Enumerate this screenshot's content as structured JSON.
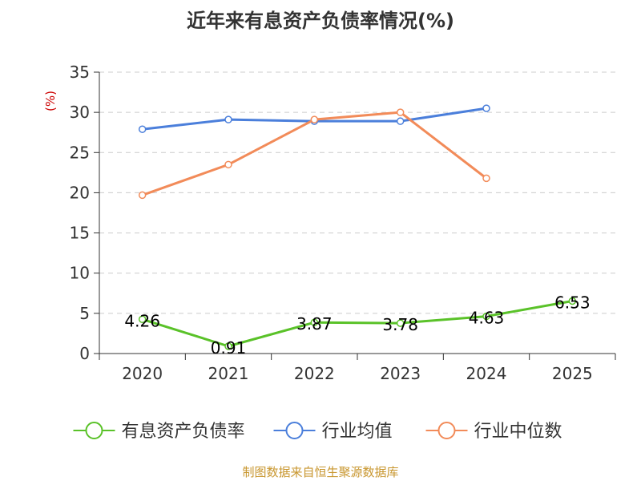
{
  "chart_data": {
    "type": "line",
    "title": "近年来有息资产负债率情况(%)",
    "ylabel": "(%)",
    "categories": [
      "2020",
      "2021",
      "2022",
      "2023",
      "2024",
      "2025"
    ],
    "ylim": [
      0,
      35
    ],
    "yticks": [
      0,
      5,
      10,
      15,
      20,
      25,
      30,
      35
    ],
    "grid": true,
    "legend_position": "bottom",
    "series": [
      {
        "name": "有息资产负债率",
        "color": "#5ac229",
        "values": [
          4.26,
          0.91,
          3.87,
          3.78,
          4.63,
          6.53
        ],
        "labels": [
          "4.26",
          "0.91",
          "3.87",
          "3.78",
          "4.63",
          "6.53"
        ]
      },
      {
        "name": "行业均值",
        "color": "#4b7fdb",
        "values": [
          27.9,
          29.1,
          28.9,
          28.9,
          30.5,
          null
        ]
      },
      {
        "name": "行业中位数",
        "color": "#f28b59",
        "values": [
          19.7,
          23.5,
          29.1,
          30.0,
          21.8,
          null
        ]
      }
    ]
  },
  "source_note": "制图数据来自恒生聚源数据库",
  "colors": {
    "title": "#333333",
    "axis": "#333333",
    "grid": "#cccccc",
    "ylabel": "#cc0000",
    "source": "#c8962e"
  }
}
